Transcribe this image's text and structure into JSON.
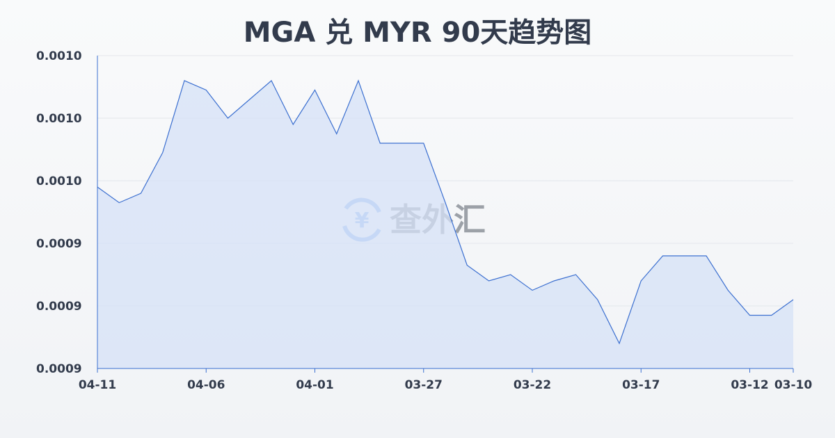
{
  "chart_data": {
    "type": "area",
    "title": "MGA 兑 MYR 90天趋势图",
    "xlabel": "",
    "ylabel": "",
    "ylim": [
      0.0009,
      0.001
    ],
    "yticks": [
      0.0009,
      0.00092,
      0.00094,
      0.00096,
      0.00098,
      0.001
    ],
    "ytick_labels": [
      "0.0009",
      "0.0009",
      "0.0009",
      "0.0010",
      "0.0010",
      "0.0010"
    ],
    "xtick_labels": [
      "04-11",
      "04-06",
      "04-01",
      "03-27",
      "03-22",
      "03-17",
      "03-12",
      "03-10"
    ],
    "xtick_index": [
      0,
      5,
      10,
      15,
      20,
      25,
      30,
      32
    ],
    "grid": true,
    "line_color": "#3b6fd0",
    "fill_color": "#d6e2f7",
    "values": [
      0.000958,
      0.000953,
      0.000956,
      0.000969,
      0.000992,
      0.000989,
      0.00098,
      0.000986,
      0.000992,
      0.000978,
      0.000989,
      0.000975,
      0.000992,
      0.000972,
      0.000972,
      0.000972,
      0.000953,
      0.000933,
      0.000928,
      0.00093,
      0.000925,
      0.000928,
      0.00093,
      0.000922,
      0.000908,
      0.000928,
      0.000936,
      0.000936,
      0.000936,
      0.000925,
      0.000917,
      0.000917,
      0.000922
    ]
  },
  "watermark": {
    "text": "查外汇",
    "icon": "yen-exchange-icon"
  }
}
